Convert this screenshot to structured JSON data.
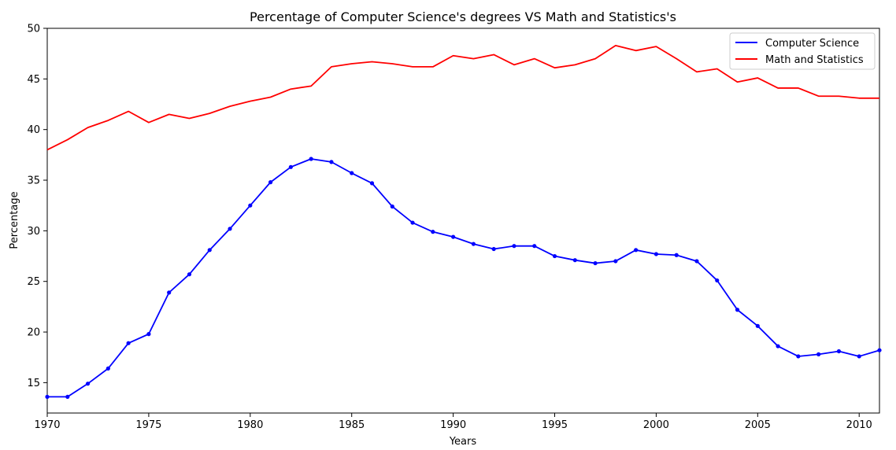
{
  "chart_data": {
    "type": "line",
    "title": "Percentage of Computer Science's degrees VS Math and Statistics's",
    "xlabel": "Years",
    "ylabel": "Percentage",
    "xlim": [
      1970,
      2011
    ],
    "ylim": [
      12,
      50
    ],
    "xticks": [
      1970,
      1975,
      1980,
      1985,
      1990,
      1995,
      2000,
      2005,
      2010
    ],
    "yticks": [
      15,
      20,
      25,
      30,
      35,
      40,
      45,
      50
    ],
    "grid": false,
    "legend_position": "top-right",
    "x": [
      1970,
      1971,
      1972,
      1973,
      1974,
      1975,
      1976,
      1977,
      1978,
      1979,
      1980,
      1981,
      1982,
      1983,
      1984,
      1985,
      1986,
      1987,
      1988,
      1989,
      1990,
      1991,
      1992,
      1993,
      1994,
      1995,
      1996,
      1997,
      1998,
      1999,
      2000,
      2001,
      2002,
      2003,
      2004,
      2005,
      2006,
      2007,
      2008,
      2009,
      2010,
      2011
    ],
    "series": [
      {
        "name": "Computer Science",
        "color": "#0000ff",
        "markers": true,
        "values": [
          13.6,
          13.6,
          14.9,
          16.4,
          18.9,
          19.8,
          23.9,
          25.7,
          28.1,
          30.2,
          32.5,
          34.8,
          36.3,
          37.1,
          36.8,
          35.7,
          34.7,
          32.4,
          30.8,
          29.9,
          29.4,
          28.7,
          28.2,
          28.5,
          28.5,
          27.5,
          27.1,
          26.8,
          27.0,
          28.1,
          27.7,
          27.6,
          27.0,
          25.1,
          22.2,
          20.6,
          18.6,
          17.6,
          17.8,
          18.1,
          17.6,
          18.2
        ]
      },
      {
        "name": "Math and Statistics",
        "color": "#ff0000",
        "markers": false,
        "values": [
          38.0,
          39.0,
          40.2,
          40.9,
          41.8,
          40.7,
          41.5,
          41.1,
          41.6,
          42.3,
          42.8,
          43.2,
          44.0,
          44.3,
          46.2,
          46.5,
          46.7,
          46.5,
          46.2,
          46.2,
          47.3,
          47.0,
          47.4,
          46.4,
          47.0,
          46.1,
          46.4,
          47.0,
          48.3,
          47.8,
          48.2,
          47.0,
          45.7,
          46.0,
          44.7,
          45.1,
          44.1,
          44.1,
          43.3,
          43.3,
          43.1,
          43.1
        ]
      }
    ]
  }
}
